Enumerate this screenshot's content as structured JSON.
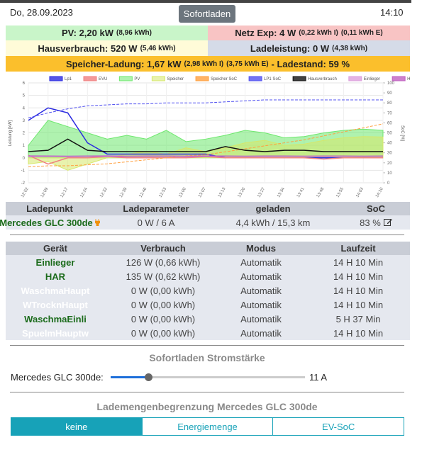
{
  "header": {
    "date": "Do, 28.09.2023",
    "button": "Sofortladen",
    "time": "14:10"
  },
  "status": {
    "pv": {
      "label": "PV: 2,20 kW",
      "detail": "(8,96 kWh)"
    },
    "netz": {
      "label": "Netz Exp: 4 W",
      "detail": "(0,22 kWh I)",
      "detail2": "(0,11 kWh E)"
    },
    "haus": {
      "label": "Hausverbrauch: 520 W",
      "detail": "(5,46 kWh)"
    },
    "lade": {
      "label": "Ladeleistung: 0 W",
      "detail": "(4,38 kWh)"
    },
    "speicher": {
      "label": "Speicher-Ladung: 1,67 kW",
      "detail": "(2,98 kWh I)",
      "detail2": "(3,75 kWh E)",
      "soc": "- Ladestand: 59 %"
    }
  },
  "chart_data": {
    "type": "line",
    "ylabel": "Leistung [kW]",
    "y2label": "SoC [%]",
    "categories": [
      "12:02",
      "12:09",
      "12:17",
      "12:24",
      "12:32",
      "12:39",
      "12:46",
      "12:53",
      "13:00",
      "13:07",
      "13:13",
      "13:20",
      "13:27",
      "13:34",
      "13:41",
      "13:48",
      "13:55",
      "14:03",
      "14:10"
    ],
    "ylim": [
      -2,
      6
    ],
    "yticks": [
      -2,
      -1,
      0,
      1,
      2,
      3,
      4,
      5,
      6
    ],
    "y2lim": [
      0,
      100
    ],
    "y2ticks": [
      0,
      10,
      20,
      30,
      40,
      50,
      60,
      70,
      80,
      90,
      100
    ],
    "grid": true,
    "series": [
      {
        "name": "Lp1",
        "color": "#2a2ae0",
        "kind": "line",
        "values": [
          3.0,
          4.0,
          3.6,
          1.2,
          0.3,
          0.3,
          0.3,
          0.3,
          0.3,
          0.3,
          0,
          0,
          0,
          0,
          0,
          0,
          0,
          0,
          0
        ]
      },
      {
        "name": "EVU",
        "color": "#f08080",
        "kind": "line",
        "values": [
          0.2,
          -0.5,
          0,
          0,
          0.1,
          0,
          0,
          0,
          0,
          0.1,
          0,
          0,
          0,
          0,
          0,
          -0.1,
          0,
          0,
          0
        ]
      },
      {
        "name": "PV",
        "color": "#6ee86e",
        "kind": "area",
        "values": [
          1.0,
          3.0,
          2.5,
          2.0,
          1.5,
          1.8,
          1.5,
          2.2,
          1.3,
          1.5,
          1.8,
          2.2,
          2.0,
          1.6,
          1.7,
          2.0,
          2.2,
          2.3,
          2.2
        ]
      },
      {
        "name": "Speicher",
        "color": "#d6e86a",
        "kind": "area",
        "values": [
          -0.5,
          -0.3,
          -1,
          -0.5,
          0,
          0.3,
          0.5,
          0.3,
          0.8,
          0.5,
          0.8,
          1.2,
          1.4,
          1.0,
          1.1,
          1.4,
          1.6,
          1.7,
          1.67
        ]
      },
      {
        "name": "Speicher SoC",
        "color": "#ffa040",
        "kind": "line",
        "dashed": true,
        "axis": "y2",
        "values": [
          16,
          17,
          17,
          18,
          19,
          21,
          23,
          25,
          27,
          28,
          31,
          34,
          37,
          40,
          43,
          47,
          51,
          55,
          59
        ]
      },
      {
        "name": "LP1 SoC",
        "color": "#5050f0",
        "kind": "line",
        "dashed": true,
        "axis": "y2",
        "values": [
          65,
          70,
          74,
          77,
          78,
          79,
          79,
          80,
          80,
          80,
          81,
          82,
          83,
          83,
          83,
          83,
          83,
          83,
          83
        ]
      },
      {
        "name": "Hausverbrauch",
        "color": "#111111",
        "kind": "line",
        "values": [
          0.5,
          0.6,
          1.5,
          0.6,
          0.5,
          0.5,
          0.5,
          0.5,
          0.5,
          0.5,
          0.9,
          0.6,
          0.5,
          0.6,
          0.6,
          0.5,
          0.5,
          0.5,
          0.5
        ]
      },
      {
        "name": "Einlieger",
        "color": "#dda0dd",
        "kind": "line",
        "values": [
          0.1,
          0.12,
          0.1,
          0.13,
          0.1,
          0.12,
          0.11,
          0.13,
          0.1,
          0.12,
          0.13,
          0.12,
          0.11,
          0.12,
          0.13,
          0.12,
          0.12,
          0.13,
          0.13
        ]
      },
      {
        "name": "HAR",
        "color": "#c060c0",
        "kind": "line",
        "values": [
          0.15,
          0.14,
          0.13,
          0.14,
          0.15,
          0.13,
          0.14,
          0.14,
          0.13,
          0.14,
          0.14,
          0.13,
          0.14,
          0.14,
          0.13,
          0.14,
          0.14,
          0.13,
          0.14
        ]
      }
    ]
  },
  "ladepunkt": {
    "headers": [
      "Ladepunkt",
      "Ladeparameter",
      "geladen",
      "SoC"
    ],
    "rows": [
      [
        "Mercedes GLC 300de",
        "0 W / 6 A",
        "4,4 kWh / 15,3 km",
        "83 %"
      ]
    ]
  },
  "geraete": {
    "headers": [
      "Gerät",
      "Verbrauch",
      "Modus",
      "Laufzeit"
    ],
    "rows": [
      {
        "name": "Einlieger",
        "verbrauch": "126 W (0,66 kWh)",
        "modus": "Automatik",
        "laufzeit": "14 H 10 Min",
        "active": true
      },
      {
        "name": "HAR",
        "verbrauch": "135 W (0,62 kWh)",
        "modus": "Automatik",
        "laufzeit": "14 H 10 Min",
        "active": true
      },
      {
        "name": "WaschmaHaupt",
        "verbrauch": "0 W (0,00 kWh)",
        "modus": "Automatik",
        "laufzeit": "14 H 10 Min",
        "active": false
      },
      {
        "name": "WTrocknHaupt",
        "verbrauch": "0 W (0,00 kWh)",
        "modus": "Automatik",
        "laufzeit": "14 H 10 Min",
        "active": false
      },
      {
        "name": "WaschmaEinli",
        "verbrauch": "0 W (0,00 kWh)",
        "modus": "Automatik",
        "laufzeit": "5 H 37 Min",
        "active": true
      },
      {
        "name": "SpuelmHauptw",
        "verbrauch": "0 W (0,00 kWh)",
        "modus": "Automatik",
        "laufzeit": "14 H 10 Min",
        "active": false
      }
    ]
  },
  "sofortladen": {
    "title": "Sofortladen Stromstärke",
    "label": "Mercedes GLC 300de:",
    "slider": {
      "value": 11,
      "label": "11 A",
      "min": 6,
      "max": 32
    }
  },
  "begrenzung": {
    "title": "Lademengenbegrenzung Mercedes GLC 300de",
    "options": [
      "keine",
      "Energiemenge",
      "EV-SoC"
    ],
    "active": 0
  }
}
